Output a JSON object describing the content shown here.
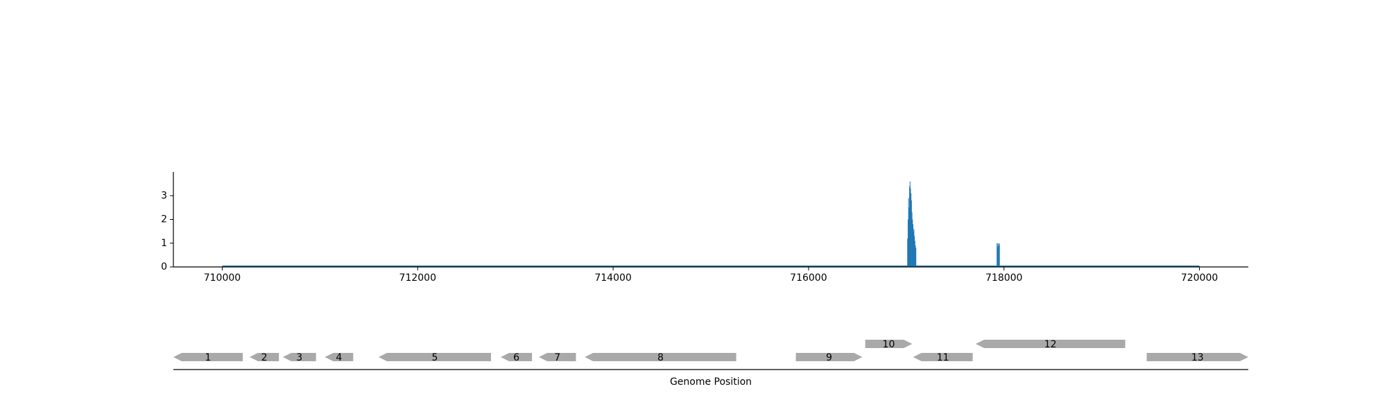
{
  "chart_data": [
    {
      "type": "bar",
      "title": "",
      "xlabel": "",
      "ylabel": "",
      "xlim": [
        709500,
        720500
      ],
      "ylim": [
        0,
        4
      ],
      "xticks": [
        710000,
        712000,
        714000,
        716000,
        718000,
        720000
      ],
      "yticks": [
        0,
        1,
        2,
        3
      ],
      "baseline": {
        "x_start": 710000,
        "x_end": 720000,
        "value": 0
      },
      "bar_width": 5,
      "x": [
        717010,
        717015,
        717020,
        717025,
        717030,
        717035,
        717040,
        717045,
        717050,
        717055,
        717060,
        717065,
        717070,
        717075,
        717080,
        717085,
        717090,
        717095,
        717925,
        717930,
        717935,
        717940,
        717945,
        717950
      ],
      "values": [
        1.2,
        2.0,
        2.9,
        2.5,
        3.4,
        3.6,
        3.3,
        3.1,
        2.8,
        2.3,
        2.0,
        1.8,
        1.5,
        1.6,
        1.3,
        1.1,
        0.9,
        0.8,
        1.0,
        0.85,
        1.0,
        0.95,
        0.9,
        1.0
      ],
      "color": "#1f77b4",
      "grid": false,
      "legend": "none"
    },
    {
      "type": "gene-track",
      "xlabel": "Genome Position",
      "xlim": [
        709500,
        720500
      ],
      "color": "#a9a9a9",
      "genes": [
        {
          "label": "1",
          "start": 709500,
          "end": 710210,
          "strand": "-",
          "row": 0
        },
        {
          "label": "2",
          "start": 710280,
          "end": 710580,
          "strand": "-",
          "row": 0
        },
        {
          "label": "3",
          "start": 710620,
          "end": 710960,
          "strand": "-",
          "row": 0
        },
        {
          "label": "4",
          "start": 711050,
          "end": 711340,
          "strand": "-",
          "row": 0
        },
        {
          "label": "5",
          "start": 711600,
          "end": 712750,
          "strand": "-",
          "row": 0
        },
        {
          "label": "6",
          "start": 712850,
          "end": 713170,
          "strand": "-",
          "row": 0
        },
        {
          "label": "7",
          "start": 713240,
          "end": 713620,
          "strand": "-",
          "row": 0
        },
        {
          "label": "8",
          "start": 713710,
          "end": 715260,
          "strand": "-",
          "row": 0
        },
        {
          "label": "9",
          "start": 715870,
          "end": 716550,
          "strand": "+",
          "row": 0
        },
        {
          "label": "10",
          "start": 716580,
          "end": 717060,
          "strand": "+",
          "row": 1
        },
        {
          "label": "11",
          "start": 717070,
          "end": 717680,
          "strand": "-",
          "row": 0
        },
        {
          "label": "12",
          "start": 717710,
          "end": 719240,
          "strand": "-",
          "row": 1
        },
        {
          "label": "13",
          "start": 719460,
          "end": 720500,
          "strand": "+",
          "row": 0
        }
      ]
    }
  ]
}
